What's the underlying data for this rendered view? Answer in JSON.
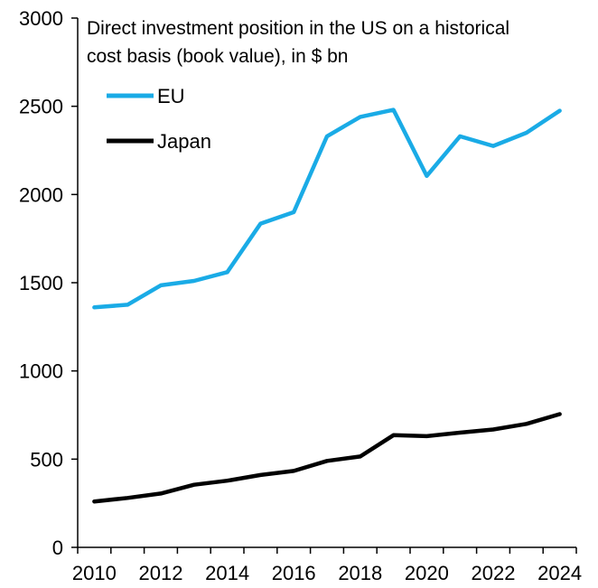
{
  "chart_data": {
    "type": "line",
    "title_lines": [
      "Direct investment position in the US on a historical",
      "cost basis (book value), in $ bn"
    ],
    "xlabel": "",
    "ylabel": "",
    "x": [
      2010,
      2011,
      2012,
      2013,
      2014,
      2015,
      2016,
      2017,
      2018,
      2019,
      2020,
      2021,
      2022,
      2023,
      2024
    ],
    "x_ticks": [
      "2010",
      "2012",
      "2014",
      "2016",
      "2018",
      "2020",
      "2022",
      "2024"
    ],
    "y_ticks": [
      "0",
      "500",
      "1000",
      "1500",
      "2000",
      "2500",
      "3000"
    ],
    "ylim": [
      0,
      3000
    ],
    "grid": false,
    "legend_position": "top-left",
    "series": [
      {
        "name": "EU",
        "color": "#1AABE6",
        "values": [
          1360,
          1375,
          1485,
          1510,
          1560,
          1835,
          1900,
          2330,
          2440,
          2480,
          2105,
          2330,
          2275,
          2350,
          2475
        ]
      },
      {
        "name": "Japan",
        "color": "#000000",
        "values": [
          260,
          280,
          305,
          355,
          378,
          410,
          433,
          490,
          515,
          636,
          630,
          650,
          668,
          700,
          755
        ]
      }
    ]
  }
}
